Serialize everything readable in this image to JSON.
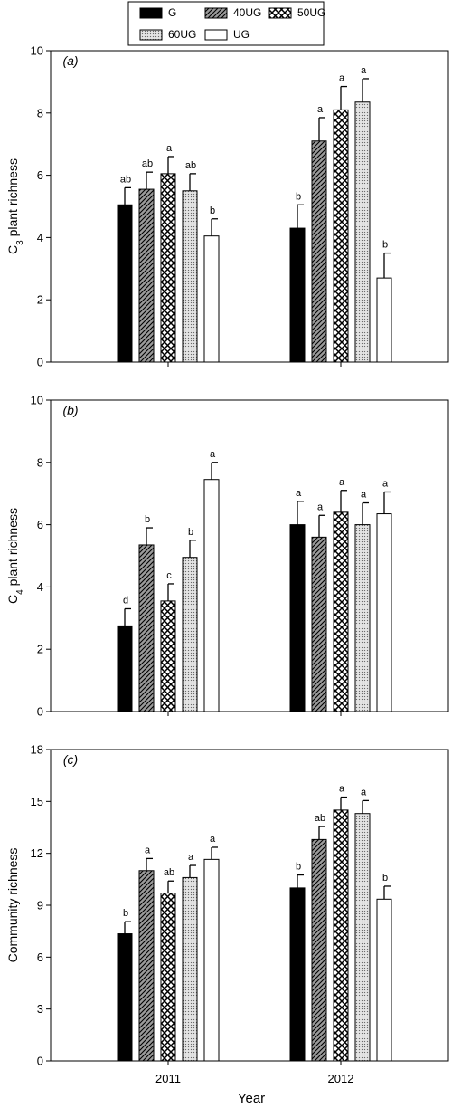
{
  "legend": {
    "entries": [
      {
        "name": "G",
        "pattern": "solid"
      },
      {
        "name": "40UG",
        "pattern": "diag"
      },
      {
        "name": "50UG",
        "pattern": "cross"
      },
      {
        "name": "60UG",
        "pattern": "dots"
      },
      {
        "name": "UG",
        "pattern": "empty"
      }
    ],
    "placement": "top-center"
  },
  "chart_data": [
    {
      "type": "bar",
      "panel_label": "(a)",
      "categories": [
        "2011",
        "2012"
      ],
      "xlabel": "",
      "ylabel": "C3 plant richness",
      "ylabel_main": "C",
      "ylabel_sub": "3",
      "ylabel_rest": " plant richness",
      "ylim": [
        0,
        10
      ],
      "yticks": [
        0,
        2,
        4,
        6,
        8,
        10
      ],
      "series": [
        {
          "name": "G",
          "values": [
            5.05,
            4.3
          ],
          "errors": [
            0.55,
            0.75
          ],
          "letters": [
            "ab",
            "b"
          ]
        },
        {
          "name": "40UG",
          "values": [
            5.55,
            7.1
          ],
          "errors": [
            0.55,
            0.75
          ],
          "letters": [
            "ab",
            "a"
          ]
        },
        {
          "name": "50UG",
          "values": [
            6.05,
            8.1
          ],
          "errors": [
            0.55,
            0.75
          ],
          "letters": [
            "a",
            "a"
          ]
        },
        {
          "name": "60UG",
          "values": [
            5.5,
            8.35
          ],
          "errors": [
            0.55,
            0.75
          ],
          "letters": [
            "ab",
            "a"
          ]
        },
        {
          "name": "UG",
          "values": [
            4.05,
            2.7
          ],
          "errors": [
            0.55,
            0.8
          ],
          "letters": [
            "b",
            "b"
          ]
        }
      ]
    },
    {
      "type": "bar",
      "panel_label": "(b)",
      "categories": [
        "2011",
        "2012"
      ],
      "xlabel": "",
      "ylabel": "C4 plant richness",
      "ylabel_main": "C",
      "ylabel_sub": "4",
      "ylabel_rest": " plant richness",
      "ylim": [
        0,
        10
      ],
      "yticks": [
        0,
        2,
        4,
        6,
        8,
        10
      ],
      "series": [
        {
          "name": "G",
          "values": [
            2.75,
            6.0
          ],
          "errors": [
            0.55,
            0.75
          ],
          "letters": [
            "d",
            "a"
          ]
        },
        {
          "name": "40UG",
          "values": [
            5.35,
            5.6
          ],
          "errors": [
            0.55,
            0.7
          ],
          "letters": [
            "b",
            "a"
          ]
        },
        {
          "name": "50UG",
          "values": [
            3.55,
            6.4
          ],
          "errors": [
            0.55,
            0.7
          ],
          "letters": [
            "c",
            "a"
          ]
        },
        {
          "name": "60UG",
          "values": [
            4.95,
            6.0
          ],
          "errors": [
            0.55,
            0.7
          ],
          "letters": [
            "b",
            "a"
          ]
        },
        {
          "name": "UG",
          "values": [
            7.45,
            6.35
          ],
          "errors": [
            0.55,
            0.7
          ],
          "letters": [
            "a",
            "a"
          ]
        }
      ]
    },
    {
      "type": "bar",
      "panel_label": "(c)",
      "categories": [
        "2011",
        "2012"
      ],
      "xlabel": "Year",
      "ylabel": "Community richness",
      "ylabel_main": "Community richness",
      "ylabel_sub": "",
      "ylabel_rest": "",
      "ylim": [
        0,
        18
      ],
      "yticks": [
        0,
        3,
        6,
        9,
        12,
        15,
        18
      ],
      "series": [
        {
          "name": "G",
          "values": [
            7.35,
            10.0
          ],
          "errors": [
            0.7,
            0.75
          ],
          "letters": [
            "b",
            "b"
          ]
        },
        {
          "name": "40UG",
          "values": [
            11.0,
            12.8
          ],
          "errors": [
            0.7,
            0.75
          ],
          "letters": [
            "a",
            "ab"
          ]
        },
        {
          "name": "50UG",
          "values": [
            9.7,
            14.5
          ],
          "errors": [
            0.7,
            0.75
          ],
          "letters": [
            "ab",
            "a"
          ]
        },
        {
          "name": "60UG",
          "values": [
            10.6,
            14.3
          ],
          "errors": [
            0.7,
            0.75
          ],
          "letters": [
            "a",
            "a"
          ]
        },
        {
          "name": "UG",
          "values": [
            11.65,
            9.35
          ],
          "errors": [
            0.7,
            0.75
          ],
          "letters": [
            "a",
            "b"
          ]
        }
      ]
    }
  ]
}
